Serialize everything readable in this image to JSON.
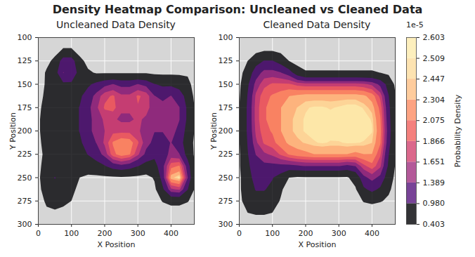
{
  "title": "Density Heatmap Comparison: Uncleaned vs Cleaned Data",
  "colorbar": {
    "label": "Probability Density",
    "offset_label": "1e-5",
    "range": [
      0.403,
      2.603
    ],
    "ticks": [
      0.403,
      {
        "value": 0.98,
        "label": "0.980"
      },
      1.389,
      1.651,
      1.866,
      2.075,
      2.304,
      2.447,
      2.509,
      2.603
    ]
  },
  "chart_data": [
    {
      "type": "heatmap",
      "title": "Uncleaned Data Density",
      "x_label": "X Position",
      "y_label": "Y Position",
      "xlim": [
        0,
        470
      ],
      "ylim": [
        100,
        300
      ],
      "xticks": [
        0,
        100,
        200,
        300,
        400
      ],
      "yticks": [
        100,
        125,
        150,
        175,
        200,
        225,
        250,
        275,
        300
      ],
      "grid": true,
      "x": [
        0,
        25,
        50,
        75,
        100,
        125,
        150,
        175,
        200,
        225,
        250,
        275,
        300,
        325,
        350,
        375,
        400,
        425,
        450,
        475
      ],
      "y": [
        100,
        112.5,
        125,
        137.5,
        150,
        162.5,
        175,
        187.5,
        200,
        212.5,
        225,
        237.5,
        250,
        262.5,
        275,
        287.5,
        300
      ],
      "cells": [
        [
          0,
          0,
          0,
          0,
          0,
          0,
          0,
          0,
          0,
          0,
          0,
          0,
          0,
          0,
          0,
          0,
          0,
          0,
          0,
          0
        ],
        [
          0,
          0,
          0.1,
          0.45,
          0.45,
          0.1,
          0,
          0,
          0,
          0,
          0,
          0,
          0,
          0,
          0,
          0,
          0,
          0,
          0,
          0
        ],
        [
          0,
          0.2,
          0.6,
          1.2,
          1.2,
          0.6,
          0.2,
          0,
          0,
          0,
          0,
          0,
          0,
          0,
          0,
          0,
          0,
          0,
          0,
          0
        ],
        [
          0,
          0.5,
          0.8,
          1.4,
          1.3,
          0.8,
          0.5,
          0.35,
          0.35,
          0.35,
          0.35,
          0.35,
          0.35,
          0.35,
          0.3,
          0.3,
          0.3,
          0.3,
          0.3,
          0
        ],
        [
          0.1,
          0.5,
          0.7,
          0.9,
          0.9,
          0.8,
          0.9,
          1.1,
          1.3,
          1.4,
          1.3,
          1.3,
          1.4,
          1.3,
          1.0,
          0.9,
          0.9,
          0.8,
          0.6,
          0.1
        ],
        [
          0.2,
          0.55,
          0.7,
          0.8,
          0.8,
          0.9,
          1.2,
          1.5,
          1.8,
          1.9,
          1.7,
          1.7,
          1.9,
          1.8,
          1.4,
          1.3,
          1.4,
          1.2,
          0.8,
          0.2
        ],
        [
          0.3,
          0.6,
          0.7,
          0.75,
          0.8,
          1.0,
          1.3,
          1.6,
          1.9,
          1.95,
          1.7,
          1.7,
          1.85,
          1.75,
          1.5,
          1.5,
          1.65,
          1.4,
          0.9,
          0.3
        ],
        [
          0.35,
          0.6,
          0.7,
          0.75,
          0.8,
          1.0,
          1.3,
          1.5,
          1.7,
          1.7,
          1.6,
          1.6,
          1.7,
          1.6,
          1.5,
          1.5,
          1.6,
          1.4,
          0.9,
          0.3
        ],
        [
          0.35,
          0.6,
          0.7,
          0.75,
          0.8,
          1.0,
          1.3,
          1.5,
          1.65,
          1.8,
          1.8,
          1.8,
          1.7,
          1.5,
          1.4,
          1.4,
          1.5,
          1.3,
          0.8,
          0.3
        ],
        [
          0.3,
          0.6,
          0.65,
          0.7,
          0.75,
          0.9,
          1.2,
          1.4,
          1.7,
          2.1,
          2.25,
          2.2,
          1.9,
          1.5,
          1.3,
          1.3,
          1.4,
          1.2,
          0.7,
          0.25
        ],
        [
          0.25,
          0.55,
          0.6,
          0.65,
          0.7,
          0.8,
          1.0,
          1.2,
          1.5,
          2.0,
          2.2,
          2.1,
          1.7,
          1.3,
          1.1,
          1.2,
          1.5,
          1.4,
          0.8,
          0.25
        ],
        [
          0.3,
          0.6,
          0.7,
          0.6,
          0.55,
          0.55,
          0.7,
          0.8,
          0.95,
          1.2,
          1.3,
          1.2,
          1.0,
          0.8,
          0.8,
          1.3,
          2.0,
          2.1,
          1.2,
          0.3
        ],
        [
          0.3,
          0.8,
          1.0,
          0.8,
          0.6,
          0.4,
          0.3,
          0.3,
          0.32,
          0.33,
          0.35,
          0.33,
          0.3,
          0.25,
          0.45,
          1.2,
          2.4,
          2.55,
          1.4,
          0.3
        ],
        [
          0.25,
          0.7,
          0.8,
          0.7,
          0.5,
          0.3,
          0.05,
          0.05,
          0.05,
          0.05,
          0.05,
          0.05,
          0.05,
          0.05,
          0.3,
          0.9,
          1.6,
          1.7,
          1.0,
          0.25
        ],
        [
          0.15,
          0.5,
          0.55,
          0.5,
          0.4,
          0.15,
          0,
          0,
          0,
          0,
          0,
          0,
          0,
          0,
          0.1,
          0.45,
          0.6,
          0.6,
          0.45,
          0.1
        ],
        [
          0,
          0.3,
          0.35,
          0.3,
          0.2,
          0,
          0,
          0,
          0,
          0,
          0,
          0,
          0,
          0,
          0,
          0,
          0.1,
          0.1,
          0,
          0
        ],
        [
          0,
          0,
          0,
          0,
          0,
          0,
          0,
          0,
          0,
          0,
          0,
          0,
          0,
          0,
          0,
          0,
          0,
          0,
          0,
          0
        ]
      ]
    },
    {
      "type": "heatmap",
      "title": "Cleaned Data Density",
      "x_label": "X Position",
      "y_label": "Y Position",
      "xlim": [
        0,
        470
      ],
      "ylim": [
        100,
        300
      ],
      "xticks": [
        0,
        100,
        200,
        300,
        400
      ],
      "yticks": [
        100,
        125,
        150,
        175,
        200,
        225,
        250,
        275,
        300
      ],
      "grid": true,
      "x": [
        0,
        25,
        50,
        75,
        100,
        125,
        150,
        175,
        200,
        225,
        250,
        275,
        300,
        325,
        350,
        375,
        400,
        425,
        450,
        475
      ],
      "y": [
        100,
        112.5,
        125,
        137.5,
        150,
        162.5,
        175,
        187.5,
        200,
        212.5,
        225,
        237.5,
        250,
        262.5,
        275,
        287.5,
        300
      ],
      "cells": [
        [
          0,
          0,
          0,
          0,
          0,
          0,
          0,
          0,
          0,
          0,
          0,
          0,
          0,
          0,
          0,
          0,
          0,
          0,
          0,
          0
        ],
        [
          0,
          0,
          0.2,
          0.3,
          0.3,
          0.2,
          0,
          0,
          0,
          0,
          0,
          0,
          0,
          0,
          0,
          0,
          0,
          0,
          0,
          0
        ],
        [
          0.1,
          0.4,
          0.8,
          1.0,
          1.0,
          0.8,
          0.4,
          0.2,
          0.2,
          0.2,
          0.2,
          0.2,
          0.2,
          0.2,
          0.2,
          0.2,
          0.2,
          0.2,
          0.1,
          0
        ],
        [
          0.2,
          0.7,
          1.2,
          1.5,
          1.5,
          1.4,
          1.2,
          0.7,
          0.45,
          0.45,
          0.45,
          0.45,
          0.45,
          0.45,
          0.45,
          0.45,
          0.45,
          0.4,
          0.3,
          0.1
        ],
        [
          0.3,
          0.9,
          1.5,
          1.8,
          1.9,
          1.9,
          1.9,
          1.8,
          1.75,
          1.75,
          1.75,
          1.75,
          1.75,
          1.75,
          1.75,
          1.7,
          1.6,
          1.3,
          0.8,
          0.2
        ],
        [
          0.35,
          1.0,
          1.7,
          2.0,
          2.1,
          2.2,
          2.3,
          2.35,
          2.4,
          2.4,
          2.4,
          2.4,
          2.4,
          2.4,
          2.4,
          2.35,
          2.2,
          1.8,
          1.0,
          0.3
        ],
        [
          0.4,
          1.05,
          1.75,
          2.05,
          2.15,
          2.3,
          2.4,
          2.45,
          2.5,
          2.52,
          2.52,
          2.5,
          2.52,
          2.55,
          2.55,
          2.5,
          2.4,
          2.0,
          1.1,
          0.3
        ],
        [
          0.4,
          1.05,
          1.75,
          2.05,
          2.15,
          2.3,
          2.42,
          2.48,
          2.52,
          2.54,
          2.55,
          2.55,
          2.57,
          2.58,
          2.58,
          2.55,
          2.5,
          2.1,
          1.15,
          0.3
        ],
        [
          0.4,
          1.05,
          1.7,
          2.0,
          2.1,
          2.3,
          2.42,
          2.48,
          2.52,
          2.54,
          2.55,
          2.55,
          2.57,
          2.58,
          2.58,
          2.56,
          2.52,
          2.15,
          1.2,
          0.3
        ],
        [
          0.38,
          1.0,
          1.6,
          1.9,
          2.0,
          2.2,
          2.35,
          2.42,
          2.46,
          2.5,
          2.52,
          2.5,
          2.5,
          2.52,
          2.52,
          2.5,
          2.45,
          2.1,
          1.15,
          0.3
        ],
        [
          0.35,
          0.95,
          1.4,
          1.6,
          1.7,
          1.9,
          2.1,
          2.2,
          2.25,
          2.3,
          2.3,
          2.3,
          2.3,
          2.3,
          2.25,
          2.3,
          2.3,
          1.9,
          1.0,
          0.3
        ],
        [
          0.35,
          0.9,
          1.2,
          1.3,
          1.3,
          1.3,
          1.3,
          1.35,
          1.4,
          1.4,
          1.4,
          1.4,
          1.4,
          1.3,
          1.4,
          1.8,
          2.0,
          1.7,
          0.9,
          0.25
        ],
        [
          0.3,
          0.85,
          1.1,
          1.1,
          1.0,
          0.8,
          0.4,
          0.35,
          0.35,
          0.35,
          0.35,
          0.35,
          0.35,
          0.35,
          0.6,
          1.3,
          1.5,
          1.3,
          0.7,
          0.2
        ],
        [
          0.3,
          0.8,
          1.0,
          1.0,
          0.9,
          0.5,
          0.1,
          0.05,
          0.05,
          0.05,
          0.05,
          0.05,
          0.05,
          0.05,
          0.35,
          0.9,
          1.1,
          0.9,
          0.5,
          0.15
        ],
        [
          0.25,
          0.7,
          0.85,
          0.85,
          0.7,
          0.35,
          0,
          0,
          0,
          0,
          0,
          0,
          0,
          0,
          0.1,
          0.45,
          0.55,
          0.45,
          0.3,
          0
        ],
        [
          0.1,
          0.4,
          0.5,
          0.5,
          0.4,
          0.15,
          0,
          0,
          0,
          0,
          0,
          0,
          0,
          0,
          0,
          0,
          0,
          0,
          0,
          0
        ],
        [
          0,
          0,
          0,
          0,
          0,
          0,
          0,
          0,
          0,
          0,
          0,
          0,
          0,
          0,
          0,
          0,
          0,
          0,
          0,
          0
        ]
      ]
    }
  ]
}
